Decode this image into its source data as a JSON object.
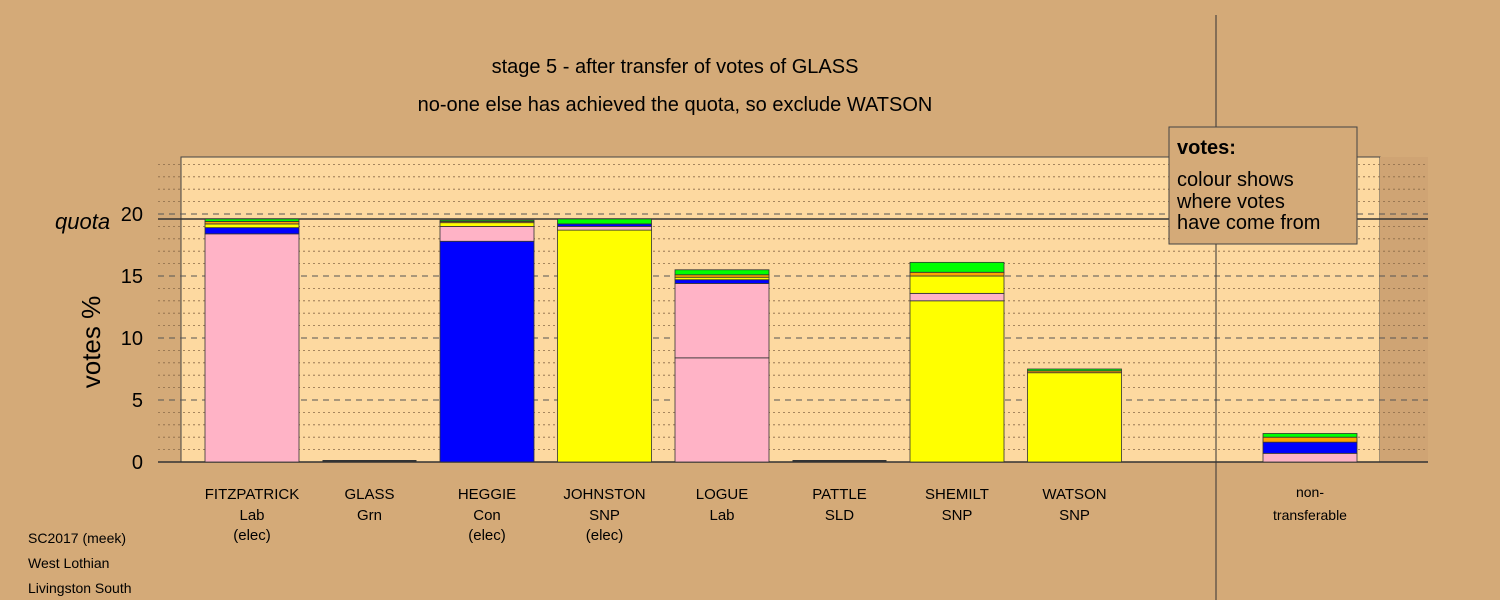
{
  "chart_data": {
    "type": "bar",
    "title": "stage 5 - after transfer of votes of GLASS",
    "subtitle": "no-one else has achieved the quota, so exclude WATSON",
    "ylabel": "votes %",
    "ylim": [
      0,
      25
    ],
    "yticks": [
      0,
      5,
      10,
      15,
      20
    ],
    "quota": 19.6,
    "quota_label": "quota",
    "legend": {
      "title": "votes:",
      "lines": [
        "colour shows",
        "where votes",
        "have come from"
      ],
      "placement": "top-right"
    },
    "categories": [
      {
        "name": "FITZPATRICK",
        "party": "Lab",
        "note": "(elec)"
      },
      {
        "name": "GLASS",
        "party": "Grn",
        "note": ""
      },
      {
        "name": "HEGGIE",
        "party": "Con",
        "note": "(elec)"
      },
      {
        "name": "JOHNSTON",
        "party": "SNP",
        "note": "(elec)"
      },
      {
        "name": "LOGUE",
        "party": "Lab",
        "note": ""
      },
      {
        "name": "PATTLE",
        "party": "SLD",
        "note": ""
      },
      {
        "name": "SHEMILT",
        "party": "SNP",
        "note": ""
      },
      {
        "name": "WATSON",
        "party": "SNP",
        "note": ""
      }
    ],
    "nontransferable_label": [
      "non-",
      "transferable"
    ],
    "bars": [
      [
        {
          "v": 18.4,
          "c": "#ffb3c6"
        },
        {
          "v": 0.5,
          "c": "#0000ff"
        },
        {
          "v": 0.3,
          "c": "#ffff00"
        },
        {
          "v": 0.2,
          "c": "#ffa500"
        },
        {
          "v": 0.2,
          "c": "#00ff00"
        }
      ],
      [],
      [
        {
          "v": 17.8,
          "c": "#0000ff"
        },
        {
          "v": 1.2,
          "c": "#ffb3c6"
        },
        {
          "v": 0.3,
          "c": "#ffff00"
        },
        {
          "v": 0.1,
          "c": "#ffa500"
        },
        {
          "v": 0.1,
          "c": "#00ff00"
        }
      ],
      [
        {
          "v": 18.7,
          "c": "#ffff00"
        },
        {
          "v": 0.3,
          "c": "#ffb3c6"
        },
        {
          "v": 0.2,
          "c": "#0000ff"
        },
        {
          "v": 0.4,
          "c": "#00ff00"
        }
      ],
      [
        {
          "v": 8.4,
          "c": "#ffb3c6"
        },
        {
          "v": 6.0,
          "c": "#ffb3c6"
        },
        {
          "v": 0.3,
          "c": "#0000ff"
        },
        {
          "v": 0.2,
          "c": "#ffff00"
        },
        {
          "v": 0.2,
          "c": "#ffa500"
        },
        {
          "v": 0.4,
          "c": "#00ff00"
        }
      ],
      [],
      [
        {
          "v": 13.0,
          "c": "#ffff00"
        },
        {
          "v": 0.6,
          "c": "#ffb3c6"
        },
        {
          "v": 1.4,
          "c": "#ffff00"
        },
        {
          "v": 0.3,
          "c": "#ffa500"
        },
        {
          "v": 0.8,
          "c": "#00ff00"
        }
      ],
      [
        {
          "v": 7.2,
          "c": "#ffff00"
        },
        {
          "v": 0.15,
          "c": "#ffa500"
        },
        {
          "v": 0.15,
          "c": "#00ff00"
        }
      ]
    ],
    "nontransferable": [
      {
        "v": 0.7,
        "c": "#ffb3c6"
      },
      {
        "v": 0.9,
        "c": "#0000ff"
      },
      {
        "v": 0.4,
        "c": "#ffa500"
      },
      {
        "v": 0.3,
        "c": "#00ff00"
      }
    ]
  },
  "footer": [
    "SC2017 (meek)",
    "West Lothian",
    "Livingston South"
  ]
}
